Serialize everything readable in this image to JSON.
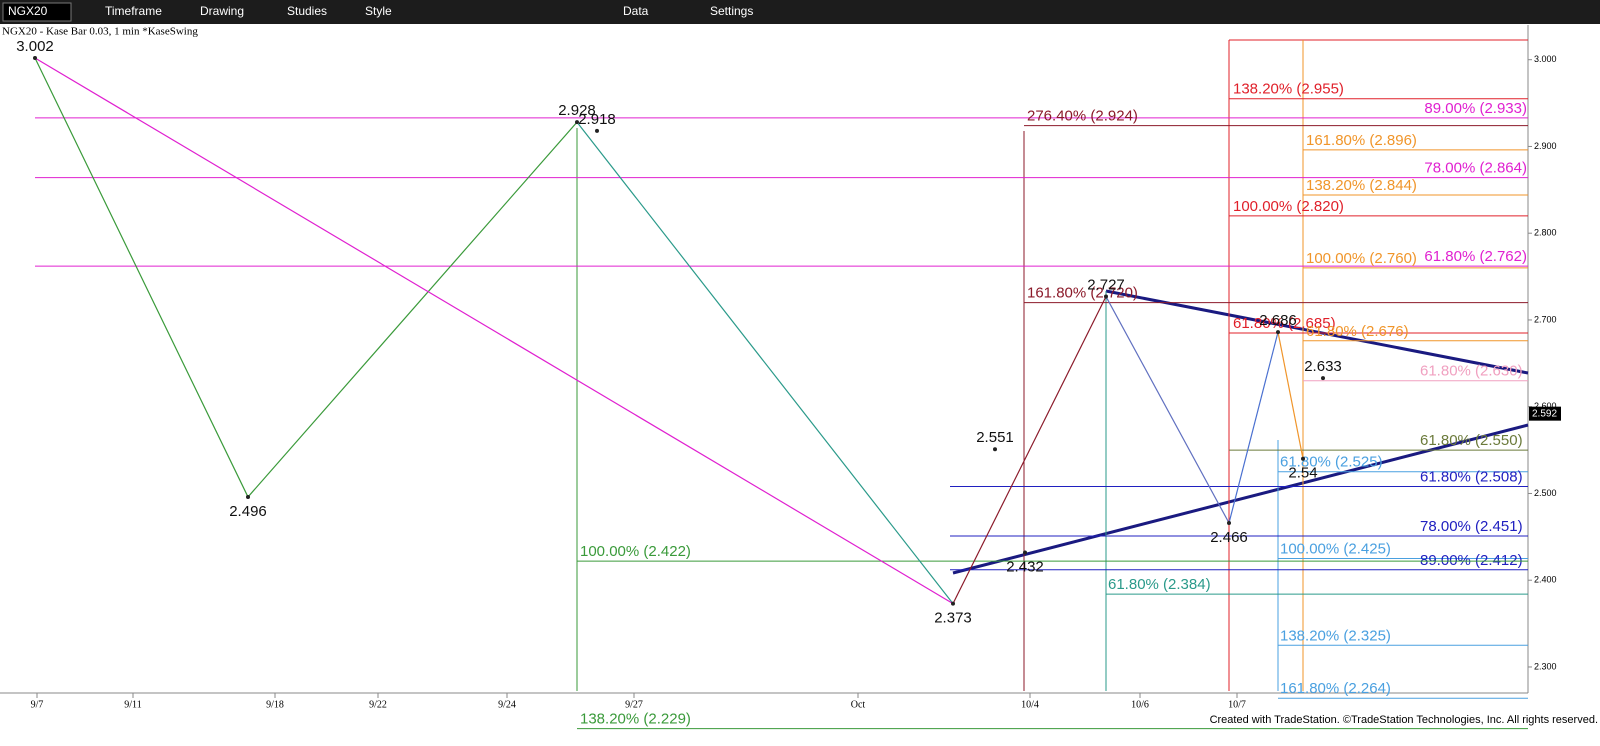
{
  "toolbar": {
    "symbol": "NGX20",
    "items": [
      "Timeframe",
      "Drawing",
      "Studies",
      "Style",
      "Data",
      "Settings"
    ]
  },
  "chart_header": "NGX20 - Kase Bar 0.03, 1 min  *KaseSwing",
  "chart_data": {
    "type": "fib-swing",
    "ylim": [
      2.27,
      3.04
    ],
    "yticks": [
      {
        "value": 3.0,
        "label": "3.000"
      },
      {
        "value": 2.9,
        "label": "2.900"
      },
      {
        "value": 2.8,
        "label": "2.800"
      },
      {
        "value": 2.7,
        "label": "2.700"
      },
      {
        "value": 2.6,
        "label": "2.600"
      },
      {
        "value": 2.5,
        "label": "2.500"
      },
      {
        "value": 2.4,
        "label": "2.400"
      },
      {
        "value": 2.3,
        "label": "2.300"
      }
    ],
    "categories": [
      "9/7",
      "9/11",
      "9/18",
      "9/22",
      "9/24",
      "9/27",
      "Oct",
      "10/4",
      "10/6",
      "10/7"
    ],
    "last_price": 2.592,
    "swings": [
      3.002,
      2.496,
      2.928,
      2.918,
      2.551,
      2.432,
      2.373,
      2.727,
      2.466,
      2.686,
      2.633,
      2.54
    ],
    "fib_levels": [
      {
        "label": "89.00% (2.933)",
        "value": 2.933,
        "color": "#e020d0"
      },
      {
        "label": "78.00% (2.864)",
        "value": 2.864,
        "color": "#e020d0"
      },
      {
        "label": "61.80% (2.762)",
        "value": 2.762,
        "color": "#e020d0"
      },
      {
        "label": "276.40% (2.924)",
        "value": 2.924,
        "color": "#8b1a2a"
      },
      {
        "label": "161.80% (2.720)",
        "value": 2.72,
        "color": "#8b1a2a"
      },
      {
        "label": "138.20% (2.955)",
        "value": 2.955,
        "color": "#e0202a"
      },
      {
        "label": "100.00% (2.820)",
        "value": 2.82,
        "color": "#e0202a"
      },
      {
        "label": "61.80% (2.685)",
        "value": 2.685,
        "color": "#e0202a"
      },
      {
        "label": "161.80% (2.896)",
        "value": 2.896,
        "color": "#f0952a"
      },
      {
        "label": "138.20% (2.844)",
        "value": 2.844,
        "color": "#f0952a"
      },
      {
        "label": "100.00% (2.760)",
        "value": 2.76,
        "color": "#f0952a"
      },
      {
        "label": "61.80% (2.676)",
        "value": 2.676,
        "color": "#f0952a"
      },
      {
        "label": "61.80% (2.630)",
        "value": 2.63,
        "color": "#f0a0c0"
      },
      {
        "label": "61.80% (2.550)",
        "value": 2.55,
        "color": "#6b7a3a"
      },
      {
        "label": "61.80% (2.525)",
        "value": 2.525,
        "color": "#4aa0e0"
      },
      {
        "label": "100.00% (2.425)",
        "value": 2.425,
        "color": "#4aa0e0"
      },
      {
        "label": "138.20% (2.325)",
        "value": 2.325,
        "color": "#4aa0e0"
      },
      {
        "label": "161.80% (2.264)",
        "value": 2.264,
        "color": "#4aa0e0"
      },
      {
        "label": "61.80% (2.508)",
        "value": 2.508,
        "color": "#2020c0"
      },
      {
        "label": "78.00% (2.451)",
        "value": 2.451,
        "color": "#2020c0"
      },
      {
        "label": "89.00% (2.412)",
        "value": 2.412,
        "color": "#2020c0"
      },
      {
        "label": "100.00% (2.422)",
        "value": 2.422,
        "color": "#3a9a3a"
      },
      {
        "label": "138.20% (2.229)",
        "value": 2.229,
        "color": "#3a9a3a"
      },
      {
        "label": "61.80% (2.384)",
        "value": 2.384,
        "color": "#2a9a8a"
      }
    ]
  },
  "footer": "Created with TradeStation. ©TradeStation Technologies, Inc. All rights reserved."
}
